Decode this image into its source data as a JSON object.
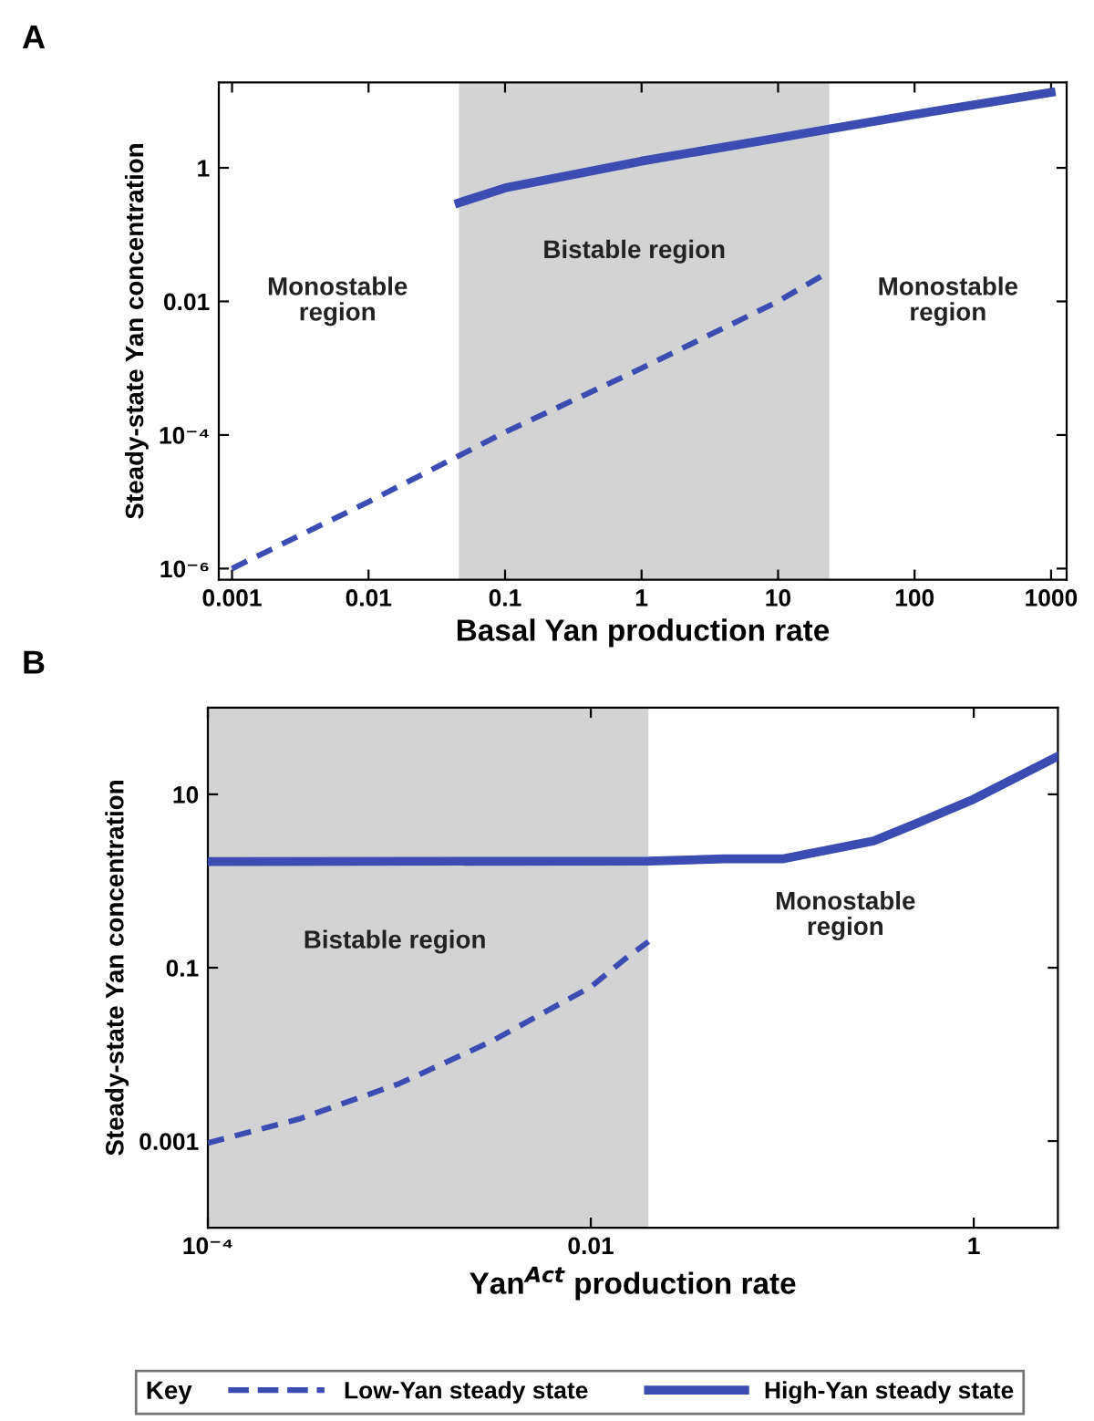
{
  "chart_data": [
    {
      "type": "line",
      "title": "A",
      "xlabel": "Basal Yan production rate",
      "ylabel": "Steady-state Yan concentration",
      "log": "xy",
      "xlim": [
        0.0008,
        1300
      ],
      "ylim": [
        6.8e-07,
        19
      ],
      "xticks": [
        0.001,
        0.01,
        0.1,
        1,
        10,
        100,
        1000
      ],
      "yticks": [
        {
          "value": 1e-06,
          "label": "10⁻⁶"
        },
        {
          "value": 0.0001,
          "label": "10⁻⁴"
        },
        0.01,
        1
      ],
      "bands": [
        {
          "axis": "x",
          "from": 0.046,
          "to": 23.7,
          "color": "#d3d3d3"
        }
      ],
      "annotations": [
        "Monostable\nregion",
        "Bistable region",
        "Monostable\nregion"
      ],
      "legend": "bottom",
      "series": [
        {
          "name": "Low-Yan steady state",
          "color": "#3b4db3",
          "line_style": "dashed",
          "x": [
            0.001,
            0.01,
            0.1,
            1,
            10,
            23.7
          ],
          "values": [
            1e-06,
            1e-05,
            0.00011,
            0.001,
            0.01,
            0.028
          ]
        },
        {
          "name": "High-Yan steady state",
          "color": "#3b4db3",
          "line_style": "solid",
          "x": [
            0.046,
            0.1,
            1,
            10,
            23.7,
            100,
            1000
          ],
          "values": [
            0.3,
            0.5,
            1.26,
            2.8,
            3.8,
            6.3,
            13.5
          ]
        }
      ]
    },
    {
      "type": "line",
      "title": "B",
      "xlabel": "Yan$^{Act}$ production rate",
      "ylabel": "Steady-state Yan concentration",
      "log": "xy",
      "xlim": [
        0.0001,
        2.75
      ],
      "ylim": [
        0.0001,
        100
      ],
      "xticks": [
        {
          "value": 0.0001,
          "label": "10⁻⁴"
        },
        0.01,
        1
      ],
      "yticks": [
        0.001,
        0.1,
        10
      ],
      "bands": [
        {
          "axis": "x",
          "from": 0.0001,
          "to": 0.02,
          "color": "#d3d3d3"
        }
      ],
      "annotations": [
        "Bistable region",
        "Monostable\nregion"
      ],
      "legend": "bottom",
      "legend_title": "Key",
      "series": [
        {
          "name": "Low-Yan steady state",
          "color": "#3b4db3",
          "line_style": "dashed",
          "x": [
            0.0001,
            0.0003,
            0.001,
            0.003,
            0.01,
            0.015,
            0.02
          ],
          "values": [
            0.00095,
            0.0018,
            0.0046,
            0.014,
            0.06,
            0.125,
            0.2
          ]
        },
        {
          "name": "High-Yan steady state",
          "color": "#3b4db3",
          "line_style": "solid",
          "x": [
            0.0001,
            0.02,
            0.05,
            0.1,
            0.3,
            0.5,
            1,
            2.75
          ],
          "values": [
            1.68,
            1.7,
            1.8,
            1.8,
            2.9,
            4.6,
            8.8,
            27.5
          ]
        }
      ]
    }
  ]
}
